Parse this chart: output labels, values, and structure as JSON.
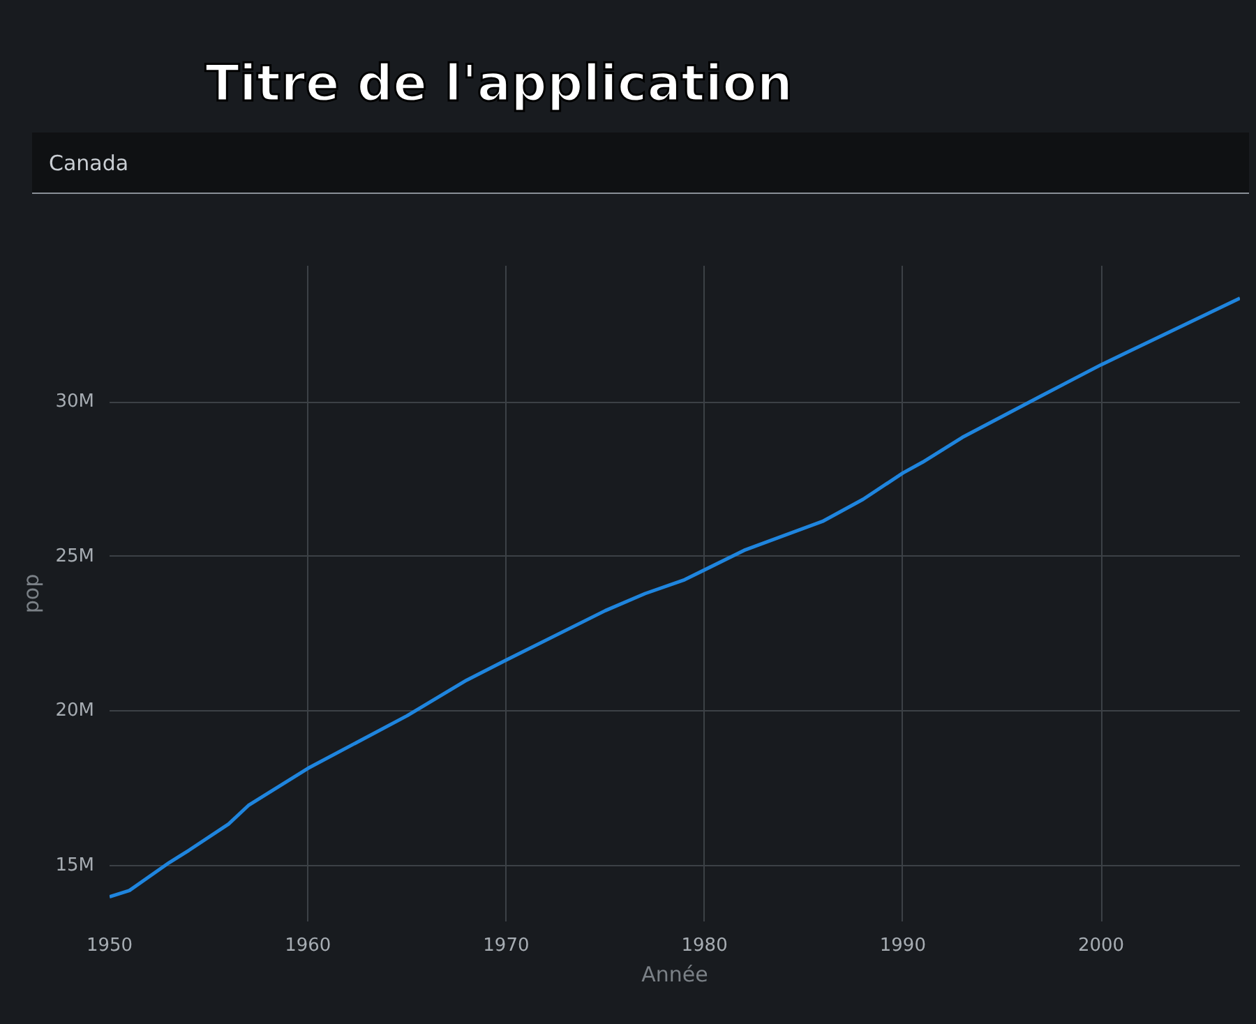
{
  "chart_data": {
    "type": "line",
    "title": "Titre de l'application",
    "subtitle": "Canada",
    "xlabel": "Année",
    "ylabel": "pop",
    "x": [
      1950,
      1951,
      1953,
      1954,
      1956,
      1957,
      1960,
      1965,
      1968,
      1970,
      1975,
      1977,
      1979,
      1982,
      1986,
      1988,
      1990,
      1991,
      1993,
      1997,
      2000,
      2007
    ],
    "series": [
      {
        "color": "#1f85de",
        "values": [
          14.0,
          14.2,
          15.1,
          15.5,
          16.35,
          16.95,
          18.15,
          19.85,
          21.0,
          21.65,
          23.25,
          23.8,
          24.25,
          25.2,
          26.15,
          26.85,
          27.7,
          28.05,
          28.85,
          30.2,
          31.2,
          33.35
        ]
      }
    ],
    "xlim": [
      1950,
      2007
    ],
    "ylim": [
      13.2,
      34.4
    ],
    "xticks": [
      1950,
      1960,
      1970,
      1980,
      1990,
      2000
    ],
    "yticks": [
      {
        "value": 15,
        "label": "15M"
      },
      {
        "value": 20,
        "label": "20M"
      },
      {
        "value": 25,
        "label": "25M"
      },
      {
        "value": 30,
        "label": "30M"
      }
    ],
    "grid": true
  }
}
